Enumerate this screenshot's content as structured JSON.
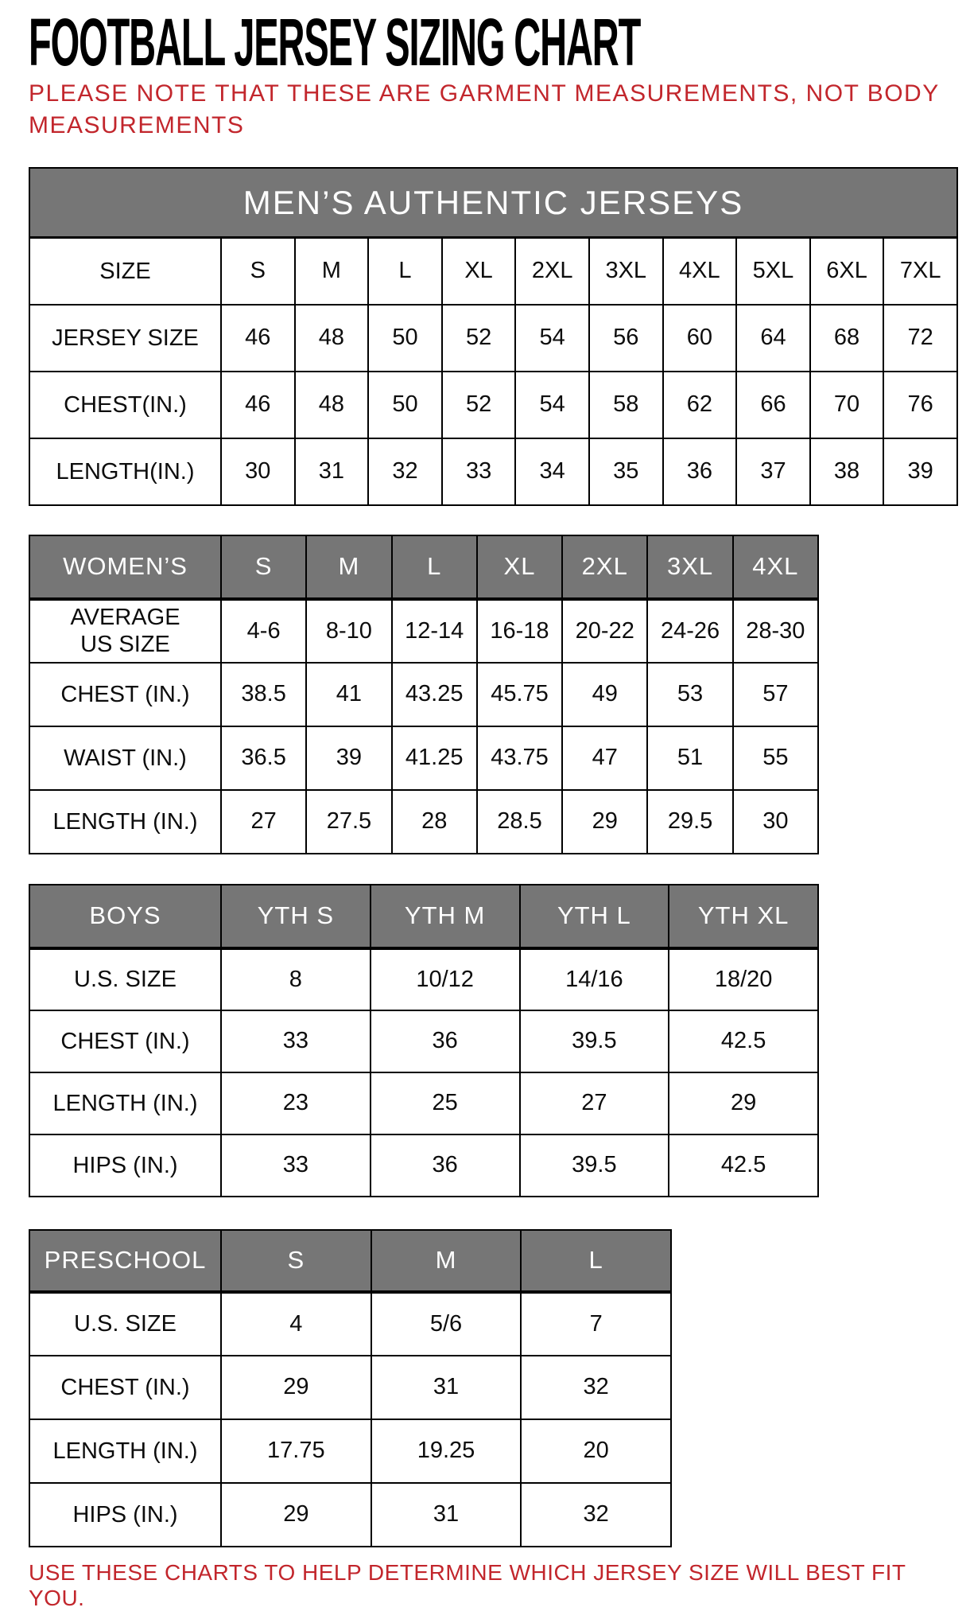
{
  "page": {
    "title": "FOOTBALL JERSEY SIZING CHART",
    "subtitle_line1": "PLEASE NOTE THAT THESE ARE GARMENT MEASUREMENTS, NOT BODY",
    "subtitle_line2": "MEASUREMENTS",
    "footer_note": "USE THESE CHARTS TO HELP DETERMINE WHICH JERSEY SIZE WILL BEST FIT YOU.",
    "colors": {
      "accent_red": "#c2262c",
      "header_gray": "#767676",
      "border": "#000000",
      "text": "#0d0d0d"
    }
  },
  "tables": {
    "mens": {
      "title": "MEN’S AUTHENTIC JERSEYS",
      "rows": [
        {
          "label": "SIZE",
          "values": [
            "S",
            "M",
            "L",
            "XL",
            "2XL",
            "3XL",
            "4XL",
            "5XL",
            "6XL",
            "7XL"
          ]
        },
        {
          "label": "JERSEY SIZE",
          "values": [
            "46",
            "48",
            "50",
            "52",
            "54",
            "56",
            "60",
            "64",
            "68",
            "72"
          ]
        },
        {
          "label": "CHEST(IN.)",
          "values": [
            "46",
            "48",
            "50",
            "52",
            "54",
            "58",
            "62",
            "66",
            "70",
            "76"
          ]
        },
        {
          "label": "LENGTH(IN.)",
          "values": [
            "30",
            "31",
            "32",
            "33",
            "34",
            "35",
            "36",
            "37",
            "38",
            "39"
          ]
        }
      ]
    },
    "womens": {
      "title": "WOMEN’S",
      "columns": [
        "S",
        "M",
        "L",
        "XL",
        "2XL",
        "3XL",
        "4XL"
      ],
      "rows": [
        {
          "label": "AVERAGE US SIZE",
          "values": [
            "4-6",
            "8-10",
            "12-14",
            "16-18",
            "20-22",
            "24-26",
            "28-30"
          ]
        },
        {
          "label": "CHEST (IN.)",
          "values": [
            "38.5",
            "41",
            "43.25",
            "45.75",
            "49",
            "53",
            "57"
          ]
        },
        {
          "label": "WAIST (IN.)",
          "values": [
            "36.5",
            "39",
            "41.25",
            "43.75",
            "47",
            "51",
            "55"
          ]
        },
        {
          "label": "LENGTH (IN.)",
          "values": [
            "27",
            "27.5",
            "28",
            "28.5",
            "29",
            "29.5",
            "30"
          ]
        }
      ]
    },
    "boys": {
      "title": "BOYS",
      "columns": [
        "YTH S",
        "YTH M",
        "YTH L",
        "YTH XL"
      ],
      "rows": [
        {
          "label": "U.S. SIZE",
          "values": [
            "8",
            "10/12",
            "14/16",
            "18/20"
          ]
        },
        {
          "label": "CHEST (IN.)",
          "values": [
            "33",
            "36",
            "39.5",
            "42.5"
          ]
        },
        {
          "label": "LENGTH (IN.)",
          "values": [
            "23",
            "25",
            "27",
            "29"
          ]
        },
        {
          "label": "HIPS (IN.)",
          "values": [
            "33",
            "36",
            "39.5",
            "42.5"
          ]
        }
      ]
    },
    "preschool": {
      "title": "PRESCHOOL",
      "columns": [
        "S",
        "M",
        "L"
      ],
      "rows": [
        {
          "label": "U.S. SIZE",
          "values": [
            "4",
            "5/6",
            "7"
          ]
        },
        {
          "label": "CHEST (IN.)",
          "values": [
            "29",
            "31",
            "32"
          ]
        },
        {
          "label": "LENGTH (IN.)",
          "values": [
            "17.75",
            "19.25",
            "20"
          ]
        },
        {
          "label": "HIPS (IN.)",
          "values": [
            "29",
            "31",
            "32"
          ]
        }
      ]
    }
  }
}
